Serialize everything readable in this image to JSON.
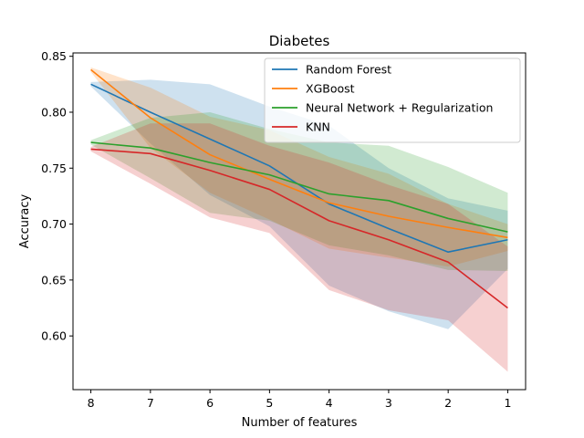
{
  "chart_data": {
    "type": "line",
    "title": "Diabetes",
    "xlabel": "Number of features",
    "ylabel": "Accuracy",
    "x": [
      8,
      7,
      6,
      5,
      4,
      3,
      2,
      1
    ],
    "x_reversed": true,
    "xlim": [
      8.3,
      0.7
    ],
    "ylim": [
      0.552,
      0.853
    ],
    "yticks": [
      "0.60",
      "0.65",
      "0.70",
      "0.75",
      "0.80",
      "0.85"
    ],
    "ytick_values": [
      0.6,
      0.65,
      0.7,
      0.75,
      0.8,
      0.85
    ],
    "legend_position": "upper right",
    "series": [
      {
        "name": "Random Forest",
        "color": "#1f77b4",
        "values": [
          0.825,
          0.8,
          0.776,
          0.752,
          0.718,
          0.696,
          0.675,
          0.686
        ],
        "upper": [
          0.827,
          0.829,
          0.825,
          0.805,
          0.788,
          0.75,
          0.723,
          0.712
        ],
        "lower": [
          0.823,
          0.772,
          0.726,
          0.698,
          0.645,
          0.622,
          0.606,
          0.66
        ]
      },
      {
        "name": "XGBoost",
        "color": "#ff7f0e",
        "values": [
          0.838,
          0.795,
          0.762,
          0.74,
          0.719,
          0.707,
          0.697,
          0.688
        ],
        "upper": [
          0.84,
          0.822,
          0.796,
          0.784,
          0.76,
          0.745,
          0.718,
          0.7
        ],
        "lower": [
          0.836,
          0.768,
          0.728,
          0.704,
          0.678,
          0.67,
          0.662,
          0.676
        ]
      },
      {
        "name": "Neural Network + Regularization",
        "color": "#2ca02c",
        "values": [
          0.773,
          0.768,
          0.755,
          0.744,
          0.727,
          0.721,
          0.705,
          0.693
        ],
        "upper": [
          0.775,
          0.795,
          0.8,
          0.785,
          0.773,
          0.77,
          0.751,
          0.728
        ],
        "lower": [
          0.771,
          0.741,
          0.71,
          0.703,
          0.681,
          0.672,
          0.659,
          0.658
        ]
      },
      {
        "name": "KNN",
        "color": "#d62728",
        "values": [
          0.767,
          0.763,
          0.748,
          0.731,
          0.703,
          0.686,
          0.666,
          0.625
        ],
        "upper": [
          0.769,
          0.79,
          0.79,
          0.77,
          0.755,
          0.735,
          0.718,
          0.68
        ],
        "lower": [
          0.765,
          0.736,
          0.706,
          0.692,
          0.641,
          0.623,
          0.614,
          0.568
        ]
      }
    ]
  }
}
